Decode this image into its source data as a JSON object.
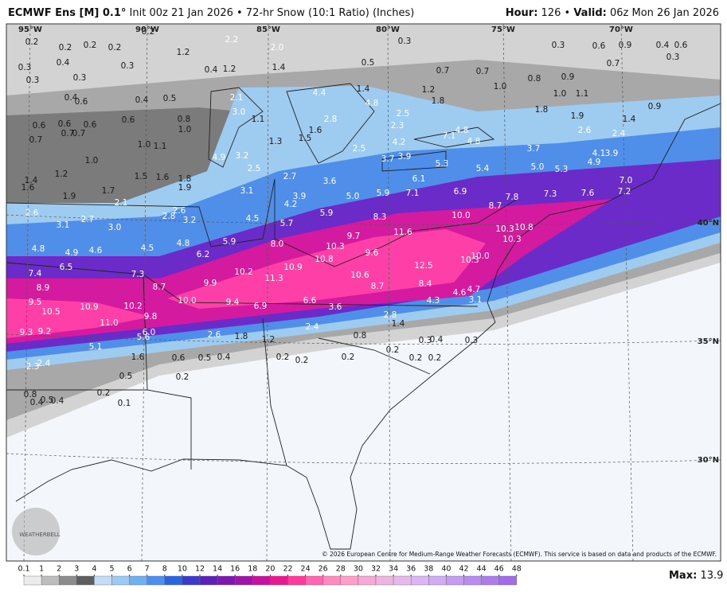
{
  "header": {
    "model": "ECMWF Ens [M] 0.1°",
    "description": "Init 00z 21 Jan 2026 • 72-hr Snow (10:1 Ratio) (Inches)",
    "hour_label": "Hour:",
    "hour": "126",
    "separator": "•",
    "valid_label": "Valid:",
    "valid": "06z Mon 26 Jan 2026"
  },
  "map": {
    "lon_labels": [
      "95°W",
      "90°W",
      "85°W",
      "80°W",
      "75°W",
      "70°W"
    ],
    "lat_labels": [
      "40°N",
      "35°N",
      "30°N"
    ],
    "labels": [
      "0.2",
      "0.2",
      "0.2",
      "0.2",
      "0.2",
      "2.2",
      "2.0",
      "0.3",
      "0.3",
      "0.6",
      "0.9",
      "0.4",
      "0.6",
      "0.3",
      "0.4",
      "0.3",
      "1.2",
      "0.4",
      "1.2",
      "1.4",
      "0.5",
      "0.7",
      "0.7",
      "0.7",
      "0.3",
      "0.3",
      "0.3",
      "0.4",
      "0.6",
      "0.4",
      "0.5",
      "2.1",
      "4.4",
      "1.4",
      "4.8",
      "1.2",
      "1.8",
      "1.0",
      "0.8",
      "0.9",
      "1.0",
      "1.1",
      "0.9",
      "0.6",
      "0.6",
      "0.6",
      "0.6",
      "0.8",
      "3.0",
      "1.1",
      "2.8",
      "2.3",
      "2.5",
      "1.8",
      "1.9",
      "1.4",
      "0.7",
      "0.7",
      "0.7",
      "1.0",
      "1.6",
      "1.3",
      "1.5",
      "7.1",
      "4.8",
      "4.8",
      "4.2",
      "2.6",
      "2.4",
      "1.0",
      "1.1",
      "2.5",
      "3.7",
      "4.1",
      "3.9",
      "1.0",
      "4.9",
      "3.2",
      "3.7",
      "3.9",
      "5.3",
      "5.4",
      "5.0",
      "5.3",
      "4.9",
      "2.5",
      "1.2",
      "1.5",
      "1.6",
      "1.8",
      "2.7",
      "3.6",
      "6.1",
      "7.0",
      "1.4",
      "1.6",
      "1.7",
      "1.9",
      "3.1",
      "3.9",
      "5.0",
      "5.9",
      "7.1",
      "6.9",
      "7.8",
      "7.3",
      "7.6",
      "7.2",
      "1.9",
      "4.2",
      "5.9",
      "8.7",
      "2.1",
      "2.6",
      "2.8",
      "3.2",
      "2.6",
      "2.7",
      "3.1",
      "3.0",
      "4.5",
      "8.3",
      "10.0",
      "5.7",
      "10.8",
      "10.3",
      "11.6",
      "9.7",
      "10.3",
      "4.8",
      "5.9",
      "8.0",
      "4.5",
      "4.8",
      "4.9",
      "4.6",
      "9.6",
      "6.2",
      "10.3",
      "10.0",
      "10.8",
      "10.3",
      "6.5",
      "10.9",
      "10.2",
      "12.5",
      "7.4",
      "7.3",
      "10.6",
      "11.3",
      "8.9",
      "9.9",
      "8.7",
      "8.4",
      "8.7",
      "4.6",
      "4.7",
      "9.5",
      "10.0",
      "9.4",
      "6.6",
      "4.3",
      "3.1",
      "10.5",
      "10.9",
      "10.2",
      "9.8",
      "6.9",
      "3.6",
      "2.8",
      "11.0",
      "1.4",
      "2.4",
      "9.3",
      "9.2",
      "6.0",
      "5.6",
      "2.6",
      "1.8",
      "1.2",
      "0.8",
      "0.3",
      "0.4",
      "0.3",
      "5.1",
      "0.2",
      "1.6",
      "0.6",
      "0.5",
      "0.4",
      "0.2",
      "0.2",
      "0.2",
      "0.2",
      "0.2",
      "2.3",
      "2.4",
      "0.5",
      "0.2",
      "0.8",
      "0.5",
      "0.4",
      "0.4",
      "0.2",
      "0.1"
    ],
    "logo": "WEATHERBELL",
    "copyright": "© 2026 European Centre for Medium-Range Weather Forecasts (ECMWF). This service is based on data and products of the ECMWF."
  },
  "scale": {
    "ticks": [
      "0.1",
      "1",
      "2",
      "3",
      "4",
      "5",
      "6",
      "7",
      "8",
      "10",
      "12",
      "14",
      "16",
      "18",
      "20",
      "22",
      "24",
      "26",
      "28",
      "30",
      "32",
      "34",
      "36",
      "38",
      "40",
      "42",
      "44",
      "46",
      "48"
    ],
    "colors": [
      "#ececec",
      "#bdbdbd",
      "#8c8c8c",
      "#5e5e5e",
      "#c4dcf5",
      "#9ccaf2",
      "#6fb0ef",
      "#4c8ff0",
      "#2a64e0",
      "#3a3acc",
      "#5a22b8",
      "#7a18b0",
      "#9e14a8",
      "#c8109a",
      "#e81890",
      "#ff3a9a",
      "#ff66b0",
      "#ff8ac0",
      "#ff9ec8",
      "#f6a8d6",
      "#eeb4e0",
      "#e6b8ec",
      "#dcb6f2",
      "#d0acf4",
      "#c49cf2",
      "#b88cf0",
      "#ac7cec",
      "#a06cea"
    ],
    "max_label": "Max:",
    "max_value": "13.9"
  }
}
